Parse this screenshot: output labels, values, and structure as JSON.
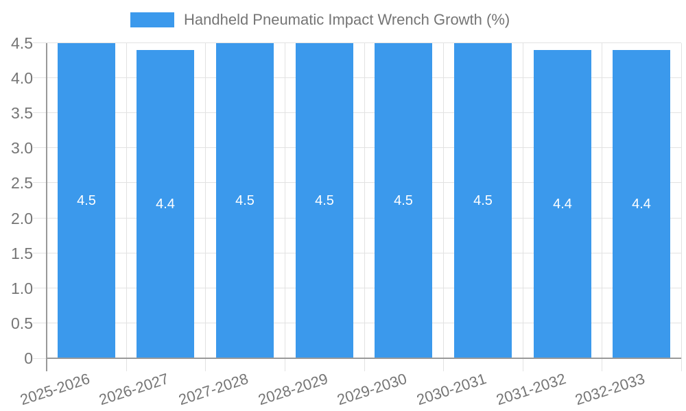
{
  "chart_data": {
    "type": "bar",
    "title": "Handheld Pneumatic Impact Wrench Growth (%)",
    "categories": [
      "2025-2026",
      "2026-2027",
      "2027-2028",
      "2028-2029",
      "2029-2030",
      "2030-2031",
      "2031-2032",
      "2032-2033"
    ],
    "values": [
      4.5,
      4.4,
      4.5,
      4.5,
      4.5,
      4.5,
      4.4,
      4.4
    ],
    "data_labels": [
      "4.5",
      "4.4",
      "4.5",
      "4.5",
      "4.5",
      "4.5",
      "4.4",
      "4.4"
    ],
    "xlabel": "",
    "ylabel": "",
    "ylim": [
      0,
      4.5
    ],
    "ytick_step": 0.5,
    "ytick_labels": [
      "0",
      "0.5",
      "1.0",
      "1.5",
      "2.0",
      "2.5",
      "3.0",
      "3.5",
      "4.0",
      "4.5"
    ],
    "grid": "on",
    "legend_position": "top",
    "colors": {
      "bar": "#3B99EC",
      "grid": "#E2E2E2",
      "axis": "#999999",
      "tick_label": "#757575",
      "data_label": "#FFFFFF"
    }
  }
}
